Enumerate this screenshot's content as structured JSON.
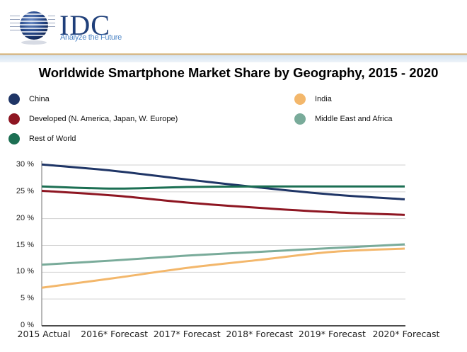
{
  "header": {
    "logo_text": "IDC",
    "tagline": "Analyze the Future"
  },
  "chart_data": {
    "type": "line",
    "title": "Worldwide Smartphone Market Share by Geography, 2015 - 2020",
    "xlabel": "",
    "ylabel": "",
    "categories": [
      "2015 Actual",
      "2016* Forecast",
      "2017* Forecast",
      "2018* Forecast",
      "2019* Forecast",
      "2020* Forecast"
    ],
    "ylim": [
      0,
      30
    ],
    "yticks": [
      "0 %",
      "5 %",
      "10 %",
      "15 %",
      "20 %",
      "25 %",
      "30 %"
    ],
    "grid": true,
    "legend_position": "top",
    "series": [
      {
        "name": "China",
        "color": "#1f3566",
        "values": [
          30.1,
          28.9,
          27.3,
          25.8,
          24.5,
          23.6
        ]
      },
      {
        "name": "India",
        "color": "#f3b76b",
        "values": [
          7.1,
          8.9,
          10.8,
          12.3,
          13.8,
          14.4
        ]
      },
      {
        "name": "Developed (N. America, Japan, W. Europe)",
        "color": "#8e1622",
        "values": [
          25.2,
          24.3,
          23.0,
          22.0,
          21.2,
          20.7
        ]
      },
      {
        "name": "Middle East and Africa",
        "color": "#79ab9a",
        "values": [
          11.4,
          12.2,
          13.1,
          13.8,
          14.5,
          15.2
        ]
      },
      {
        "name": "Rest of World",
        "color": "#1c6f53",
        "values": [
          26.0,
          25.6,
          25.9,
          26.0,
          26.0,
          26.0
        ]
      }
    ]
  }
}
